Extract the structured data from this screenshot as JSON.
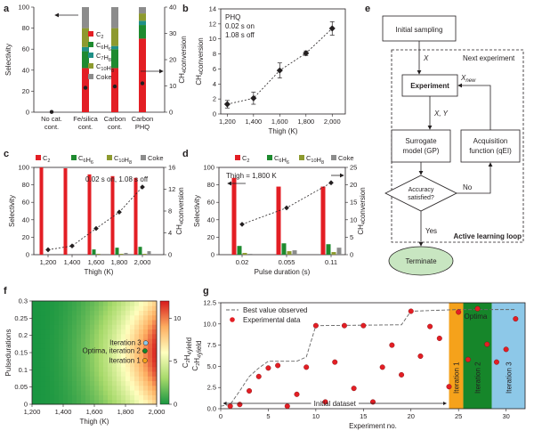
{
  "colors": {
    "c2": "#e31e24",
    "c6h6": "#1e8a2f",
    "c7h8": "#1f8f87",
    "c10h8": "#8d9a2f",
    "coke": "#8c8c8c",
    "iter1": "#f5a21b",
    "iter2": "#16862a",
    "iter3": "#8dc8e8",
    "terminate": "#c8e6c1"
  },
  "chart_data": [
    {
      "panel": "a",
      "type": "bar",
      "categories": [
        "No cat. cont.",
        "Fe/silica cont.",
        "Carbon cont.",
        "Carbon PHQ"
      ],
      "series": [
        {
          "name": "C2",
          "values": [
            0,
            42,
            42,
            70
          ]
        },
        {
          "name": "C6H6",
          "values": [
            0,
            16,
            18,
            13
          ]
        },
        {
          "name": "C7H8",
          "values": [
            0,
            4,
            3,
            4
          ]
        },
        {
          "name": "C10H8",
          "values": [
            0,
            18,
            17,
            7
          ]
        },
        {
          "name": "Coke",
          "values": [
            0,
            20,
            20,
            6
          ]
        }
      ],
      "conversion": [
        0.1,
        9.3,
        9.8,
        11.0
      ],
      "ylabel": "Selectivity (%)",
      "y2label": "CH4 conversion (%)",
      "ylim": [
        0,
        100
      ],
      "y2lim": [
        0,
        40
      ],
      "legend": [
        "C2",
        "C6H6",
        "C7H8",
        "C10H8",
        "Coke"
      ]
    },
    {
      "panel": "b",
      "type": "line",
      "x": [
        1200,
        1400,
        1600,
        1800,
        2000
      ],
      "y": [
        1.3,
        2.1,
        5.8,
        8.1,
        11.4
      ],
      "err": [
        0.5,
        0.8,
        1.0,
        0.3,
        0.9
      ],
      "xlabel": "Thigh (K)",
      "ylabel": "CH4 conversion (%)",
      "xlim": [
        1150,
        2100
      ],
      "ylim": [
        0,
        14
      ],
      "annotation": [
        "PHQ",
        "0.02 s on",
        "1.08 s off"
      ]
    },
    {
      "panel": "c",
      "type": "bar",
      "categories": [
        "1,200",
        "1,400",
        "1,600",
        "1,800",
        "2,000"
      ],
      "series": [
        {
          "name": "C2",
          "values": [
            100,
            99,
            92,
            90,
            88
          ]
        },
        {
          "name": "C6H6",
          "values": [
            0,
            0,
            6,
            8,
            9
          ]
        },
        {
          "name": "C10H8",
          "values": [
            0,
            0,
            1,
            1,
            1
          ]
        },
        {
          "name": "Coke",
          "values": [
            0,
            0,
            0,
            2,
            4
          ]
        }
      ],
      "conversion": [
        0.9,
        1.6,
        4.8,
        7.8,
        12.4
      ],
      "xlabel": "Thigh (K)",
      "ylabel": "Selectivity (%)",
      "y2label": "CH4 conversion (%)",
      "ylim": [
        0,
        100
      ],
      "y2lim": [
        0,
        16
      ],
      "annotation": "0.02 s on, 1.08 s off",
      "legend": [
        "C2",
        "C6H6",
        "C10H8",
        "Coke"
      ]
    },
    {
      "panel": "d",
      "type": "bar",
      "categories": [
        "0.02",
        "0.055",
        "0.11"
      ],
      "series": [
        {
          "name": "C2",
          "values": [
            88,
            78,
            78
          ]
        },
        {
          "name": "C6H6",
          "values": [
            10,
            13,
            12
          ]
        },
        {
          "name": "C10H8",
          "values": [
            2,
            4,
            3
          ]
        },
        {
          "name": "Coke",
          "values": [
            1,
            5,
            8
          ]
        }
      ],
      "conversion": [
        8.7,
        13.4,
        20.6
      ],
      "xlabel": "Pulse duration (s)",
      "ylabel": "Selectivity (%)",
      "y2label": "CH4 conversion (%)",
      "ylim": [
        0,
        100
      ],
      "y2lim": [
        0,
        25
      ],
      "annotation": "Thigh = 1,800 K",
      "legend": [
        "C2",
        "C6H6",
        "C10H8",
        "Coke"
      ]
    },
    {
      "panel": "f",
      "type": "heatmap",
      "xlabel": "Thigh (K)",
      "ylabel": "Pulse duration (s)",
      "colorbar_label": "C2H4 yield (%)",
      "xlim": [
        1200,
        2000
      ],
      "ylim": [
        0,
        0.3
      ],
      "clim": [
        0,
        12
      ],
      "points": [
        {
          "label": "Iteration 3",
          "x": 1930,
          "y": 0.178,
          "color": "#8dc8e8"
        },
        {
          "label": "Optima, iteration 2",
          "x": 1925,
          "y": 0.155,
          "color": "#16862a"
        },
        {
          "label": "Iteration 1",
          "x": 1925,
          "y": 0.127,
          "color": "#f5a21b"
        }
      ]
    },
    {
      "panel": "g",
      "type": "scatter",
      "xlabel": "Experiment no.",
      "ylabel": "C2H4 yield (%)",
      "xlim": [
        0,
        32
      ],
      "ylim": [
        0,
        12.5
      ],
      "series": [
        {
          "name": "Experimental data",
          "x": [
            1,
            2,
            3,
            4,
            5,
            6,
            7,
            8,
            9,
            10,
            11,
            12,
            13,
            14,
            15,
            16,
            17,
            18,
            19,
            20,
            21,
            22,
            23,
            24,
            25,
            26,
            27,
            28,
            29,
            30,
            31
          ],
          "y": [
            0.3,
            0.5,
            2.1,
            3.8,
            4.8,
            5.1,
            0.3,
            1.7,
            4.9,
            9.8,
            0.8,
            5.5,
            9.8,
            2.4,
            9.8,
            0.8,
            4.9,
            7.5,
            4.0,
            11.5,
            6.2,
            9.7,
            8.3,
            2.6,
            11.4,
            5.8,
            11.8,
            7.6,
            5.5,
            7.0,
            10.6
          ]
        },
        {
          "name": "Best value observed",
          "x": [
            0,
            1,
            2,
            3,
            4,
            5,
            7,
            8,
            9,
            10,
            19,
            20,
            25,
            31
          ],
          "y": [
            0.3,
            0.5,
            2.1,
            3.8,
            4.8,
            5.6,
            5.6,
            5.6,
            6.1,
            9.8,
            9.9,
            11.5,
            11.7,
            11.7
          ]
        }
      ],
      "regions": [
        {
          "label": "Initial dataset",
          "x": [
            0,
            24
          ]
        },
        {
          "label": "Iteration 1",
          "x": [
            24,
            25.5
          ]
        },
        {
          "label": "Iteration 2",
          "x": [
            25.5,
            28.5
          ]
        },
        {
          "label": "Iteration 3",
          "x": [
            28.5,
            32
          ]
        }
      ],
      "annotation": "Optima"
    }
  ],
  "diagram": {
    "panel": "e",
    "nodes": {
      "sampling": "Initial sampling",
      "experiment": "Experiment",
      "surrogate": [
        "Surrogate",
        "model (GP)"
      ],
      "acquisition": [
        "Acquisition",
        "function (qEI)"
      ],
      "accuracy": [
        "Accuracy",
        "satisfied?"
      ],
      "terminate": "Terminate"
    },
    "edges": {
      "x": "X",
      "xy": "X, Y",
      "xnew": "X",
      "xnew_sub": "new",
      "next": "Next experiment",
      "no": "No",
      "yes": "Yes"
    },
    "loop_label": "Active learning loop"
  }
}
